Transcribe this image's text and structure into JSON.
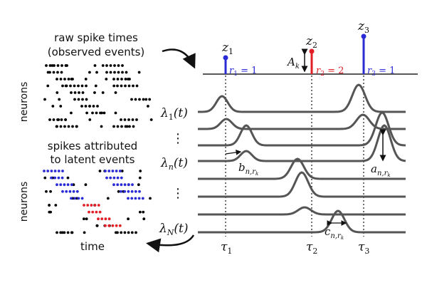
{
  "raster_top": {
    "title_line1": "raw spike times",
    "title_line2": "(observed events)",
    "ylabel": "neurons"
  },
  "raster_bottom": {
    "title_line1": "spikes attributed",
    "title_line2": "to latent events",
    "ylabel": "neurons",
    "xlabel": "time"
  },
  "latent_events": [
    {
      "z_base": "z",
      "z_sub": "1",
      "r_base": "r",
      "r_sub": "1",
      "r_eq": " = 1",
      "color": "#2b2bd6",
      "tau_base": "τ",
      "tau_sub": "1",
      "height": "short"
    },
    {
      "z_base": "z",
      "z_sub": "2",
      "r_base": "r",
      "r_sub": "2",
      "r_eq": " = 2",
      "color": "#e21f26",
      "tau_base": "τ",
      "tau_sub": "2",
      "height": "medium"
    },
    {
      "z_base": "z",
      "z_sub": "3",
      "r_base": "r",
      "r_sub": "3",
      "r_eq": " = 1",
      "color": "#2b2bd6",
      "tau_base": "τ",
      "tau_sub": "3",
      "height": "tall"
    }
  ],
  "amplitude_label": {
    "base": "A",
    "sub": "k"
  },
  "rate_labels": [
    {
      "base": "λ",
      "sub": "1",
      "arg": "(t)"
    },
    {
      "base": "λ",
      "sub": "n",
      "arg": "(t)"
    },
    {
      "base": "λ",
      "sub": "N",
      "arg": "(t)"
    }
  ],
  "vdots": "⋮",
  "annotations": {
    "offset": {
      "base": "b",
      "sub": "n,r",
      "subsub": "k"
    },
    "amplitude": {
      "base": "a",
      "sub": "n,r",
      "subsub": "k"
    },
    "width": {
      "base": "c",
      "sub": "n,r",
      "subsub": "k"
    }
  },
  "colors": {
    "spike": "#000000",
    "type1": "#2b2bd6",
    "type2": "#e21f26",
    "curve": "#555555",
    "axis": "#222222"
  }
}
